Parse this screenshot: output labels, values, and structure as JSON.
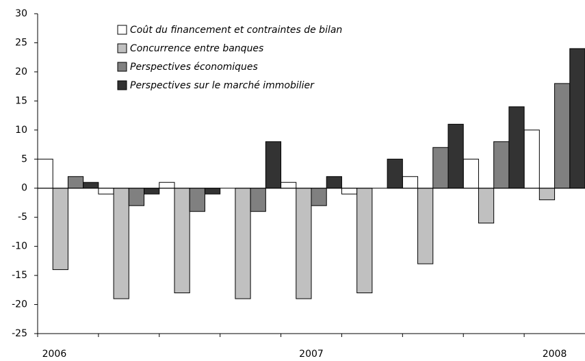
{
  "chart_data": {
    "type": "bar",
    "categories": [
      "2006",
      null,
      null,
      null,
      "2007",
      null,
      null,
      null,
      "2008"
    ],
    "series": [
      {
        "name": "Coût du financement et contraintes de bilan",
        "color": "#ffffff",
        "values": [
          5,
          -1,
          1,
          0,
          1,
          -1,
          2,
          5,
          10
        ]
      },
      {
        "name": "Concurrence entre banques",
        "color": "#c0c0c0",
        "values": [
          -14,
          -19,
          -18,
          -19,
          -19,
          -18,
          -13,
          -6,
          -2
        ]
      },
      {
        "name": "Perspectives économiques",
        "color": "#808080",
        "values": [
          2,
          -3,
          -4,
          -4,
          -3,
          0,
          7,
          8,
          18
        ]
      },
      {
        "name": "Perspectives sur le marché immobilier",
        "color": "#333333",
        "values": [
          1,
          -1,
          -1,
          8,
          2,
          5,
          11,
          14,
          24
        ]
      }
    ],
    "ylim": [
      -25,
      30
    ],
    "yticks": [
      -25,
      -20,
      -15,
      -10,
      -5,
      0,
      5,
      10,
      15,
      20,
      25,
      30
    ],
    "legend": "top-left",
    "grid": false
  }
}
